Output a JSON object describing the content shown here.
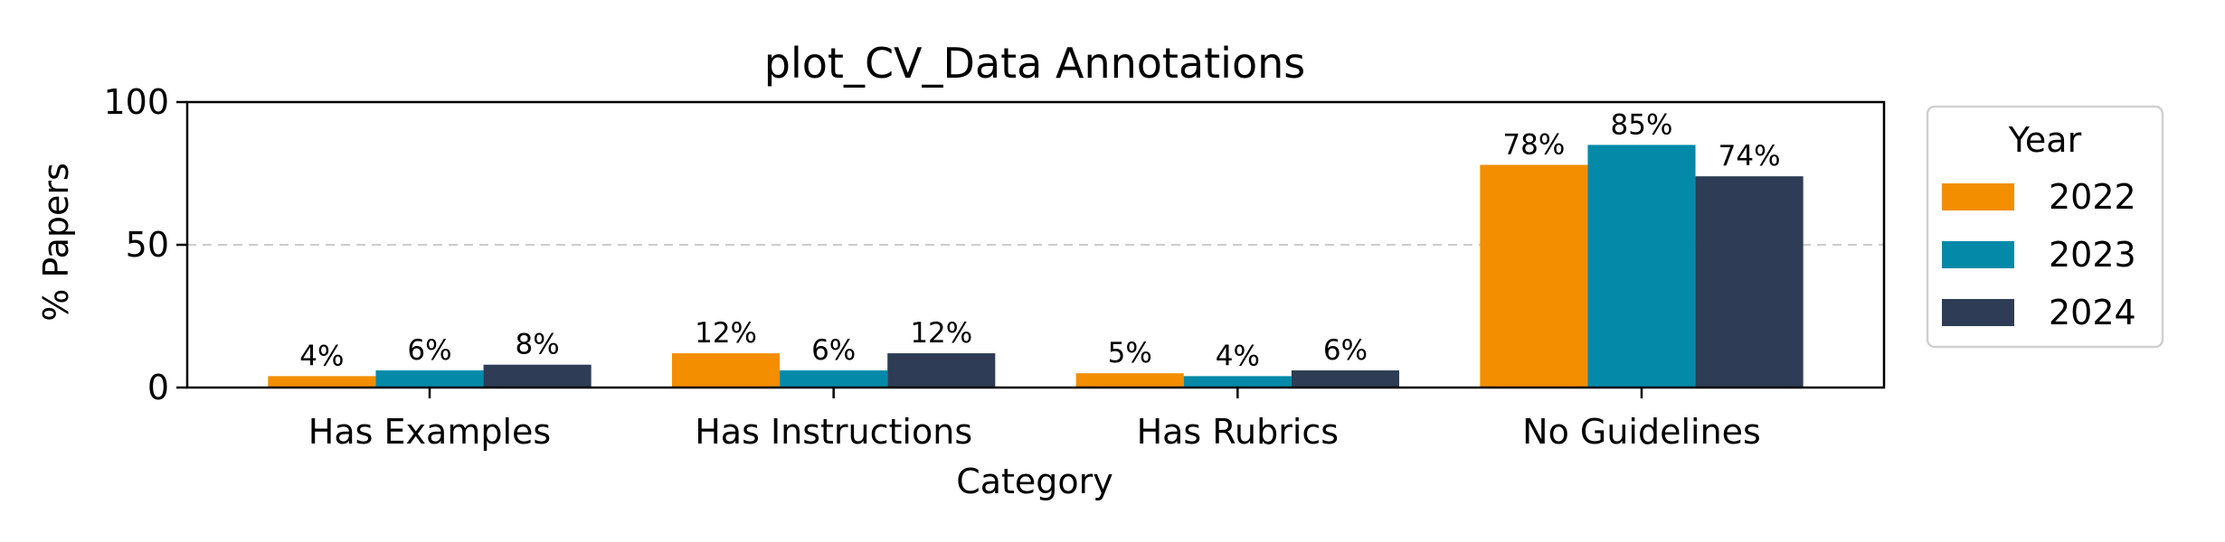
{
  "chart_data": {
    "type": "bar",
    "title": "plot_CV_Data Annotations",
    "xlabel": "Category",
    "ylabel": "% Papers",
    "categories": [
      "Has Examples",
      "Has Instructions",
      "Has Rubrics",
      "No Guidelines"
    ],
    "ylim": [
      0,
      100
    ],
    "yticks": [
      0,
      50,
      100
    ],
    "grid": "horizontal dashed at 50",
    "legend": {
      "title": "Year",
      "placement": "outside-right"
    },
    "series": [
      {
        "name": "2022",
        "color": "#F28E00",
        "values": [
          4,
          12,
          5,
          78
        ],
        "labels": [
          "4%",
          "12%",
          "5%",
          "78%"
        ]
      },
      {
        "name": "2023",
        "color": "#048AA8",
        "values": [
          6,
          6,
          4,
          85
        ],
        "labels": [
          "6%",
          "6%",
          "4%",
          "85%"
        ]
      },
      {
        "name": "2024",
        "color": "#2E3D55",
        "values": [
          8,
          12,
          6,
          74
        ],
        "labels": [
          "8%",
          "12%",
          "6%",
          "74%"
        ]
      }
    ]
  }
}
